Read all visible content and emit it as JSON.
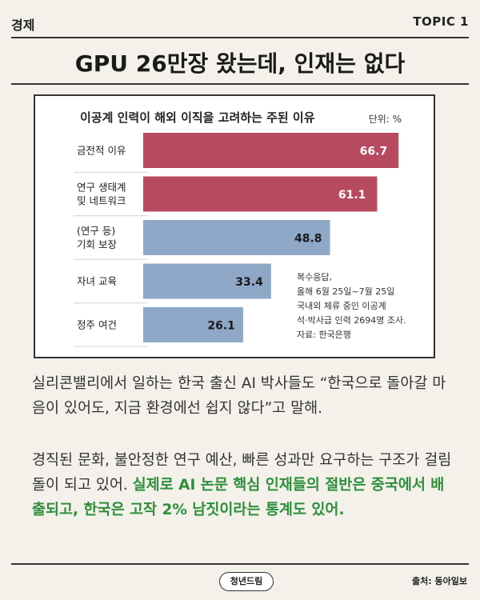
{
  "header": {
    "section": "경제",
    "topic": "TOPIC 1"
  },
  "headline": "GPU 26만장 왔는데, 인재는 없다",
  "chart_data": {
    "type": "bar",
    "orientation": "horizontal",
    "title": "이공계 인력이 해외 이직을 고려하는 주된 이유",
    "unit": "단위: %",
    "xlim": [
      0,
      70
    ],
    "categories": [
      [
        "금전적 이유"
      ],
      [
        "연구 생태계",
        "및 네트워크"
      ],
      [
        "(연구 등)",
        "기회 보장"
      ],
      [
        "자녀 교육"
      ],
      [
        "정주 여건"
      ]
    ],
    "values": [
      66.7,
      61.1,
      48.8,
      33.4,
      26.1
    ],
    "value_labels": [
      "66.7",
      "61.1",
      "48.8",
      "33.4",
      "26.1"
    ],
    "colors": {
      "highlight": "#b84a5f",
      "normal": "#8fa8c8",
      "label_on_highlight": "#ffffff",
      "label_on_normal": "#1a1a1a"
    },
    "highlighted": [
      true,
      true,
      false,
      false,
      false
    ],
    "note": [
      "복수응답,",
      "올해 6월 25일~7월 25일",
      "국내외 체류 중인 이공계",
      "석·박사급 인력 2694명 조사.",
      "자료: 한국은행"
    ]
  },
  "body": {
    "p1": "실리콘밸리에서 일하는 한국 출신 AI 박사들도 “한국으로 돌아갈 마음이 있어도, 지금 환경에선 쉽지 않다”고 말해.",
    "p2_plain": "경직된 문화, 불안정한 연구 예산, 빠른 성과만 요구하는 구조가 걸림돌이 되고 있어. ",
    "p2_highlight": "실제로 AI 논문 핵심 인재들의 절반은 중국에서 배출되고, 한국은 고작 2% 남짓이라는 통계도 있어."
  },
  "footer": {
    "logo": "청년드림",
    "source": "출처: 동아일보"
  }
}
